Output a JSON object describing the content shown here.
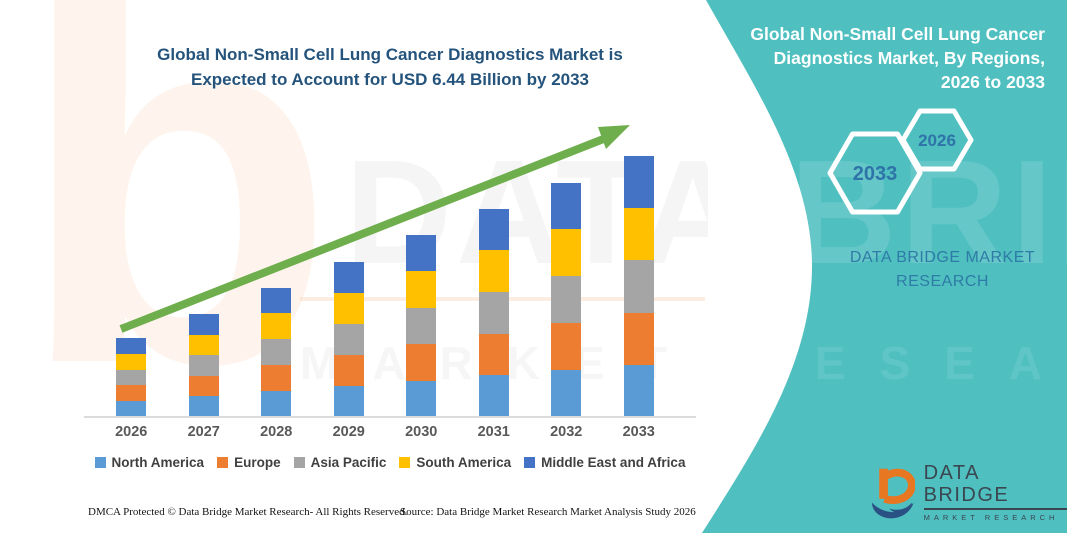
{
  "colors": {
    "teal_panel": "#4FBFC0",
    "arrow_green": "#6FAE4C",
    "title_navy": "#24537C",
    "hex_year_blue": "#2E74A8",
    "axis_gray": "#DBDBDB"
  },
  "left_panel": {
    "title_line1": "Global Non-Small Cell Lung Cancer Diagnostics Market is",
    "title_line2": "Expected to Account for USD 6.44 Billion by 2033",
    "footer_left": "DMCA Protected © Data Bridge Market Research-  All Rights Reserved.",
    "footer_source": "Source: Data Bridge Market Research  Market Analysis Study 2026"
  },
  "right_panel": {
    "title_line1": "Global Non-Small Cell Lung Cancer",
    "title_line2": "Diagnostics Market, By Regions,",
    "title_line3": "2026 to 2033",
    "hex_large_label": "2033",
    "hex_small_label": "2026",
    "brand_line1": "DATA BRIDGE MARKET",
    "brand_line2": "RESEARCH",
    "logo_title": "DATA BRIDGE",
    "logo_subtitle": "MARKET RESEARCH"
  },
  "watermarks": {
    "big_letter": "b",
    "brand_ghost": "DATA BRIDGE",
    "market_ghost": "MARKET RESEARCH"
  },
  "chart_data": {
    "type": "bar",
    "stacked": true,
    "title": "Global Non-Small Cell Lung Cancer Diagnostics Market is Expected to Account for USD 6.44 Billion by 2033",
    "unit": "USD Billion",
    "categories": [
      "2026",
      "2027",
      "2028",
      "2029",
      "2030",
      "2031",
      "2032",
      "2033"
    ],
    "series": [
      {
        "name": "North America",
        "color": "#5B9BD5",
        "values": [
          0.39,
          0.51,
          0.64,
          0.77,
          0.9,
          1.03,
          1.16,
          1.29
        ]
      },
      {
        "name": "Europe",
        "color": "#ED7D31",
        "values": [
          0.39,
          0.51,
          0.64,
          0.77,
          0.9,
          1.03,
          1.16,
          1.29
        ]
      },
      {
        "name": "Asia Pacific",
        "color": "#A5A5A5",
        "values": [
          0.39,
          0.51,
          0.64,
          0.77,
          0.9,
          1.03,
          1.16,
          1.29
        ]
      },
      {
        "name": "South America",
        "color": "#FFC000",
        "values": [
          0.39,
          0.51,
          0.64,
          0.77,
          0.9,
          1.03,
          1.16,
          1.29
        ]
      },
      {
        "name": "Middle East and Africa",
        "color": "#4472C4",
        "values": [
          0.39,
          0.51,
          0.64,
          0.77,
          0.9,
          1.03,
          1.16,
          1.29
        ]
      }
    ],
    "totals_estimated": [
      1.93,
      2.57,
      3.22,
      3.86,
      4.51,
      5.15,
      5.8,
      6.44
    ],
    "ylim": [
      0,
      6.6
    ],
    "xlabel": "",
    "ylabel": "",
    "gridlines": false,
    "legend_position": "bottom",
    "annotations": [
      "upward green trend arrow across bar tops"
    ]
  }
}
